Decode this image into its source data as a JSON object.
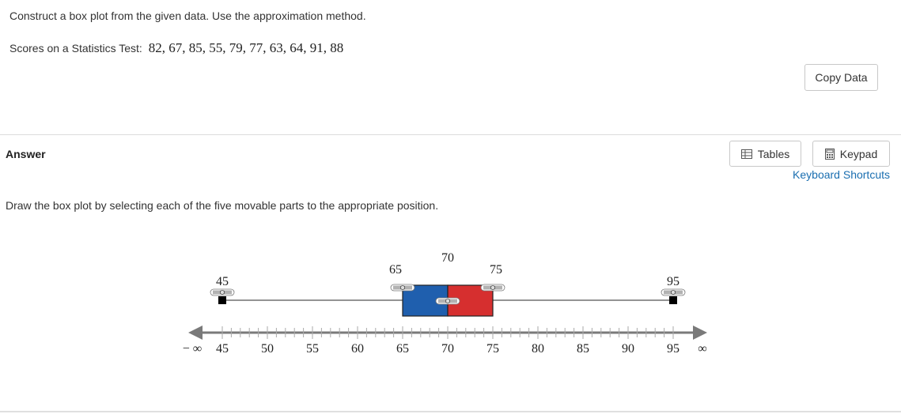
{
  "question": {
    "instruction": "Construct a box plot from the given data. Use the approximation method.",
    "data_label": "Scores on a Statistics Test:",
    "data_values": "82, 67, 85, 55, 79, 77, 63, 64, 91, 88",
    "copy_button": "Copy Data"
  },
  "answer": {
    "heading": "Answer",
    "tables_button": "Tables",
    "keypad_button": "Keypad",
    "keyboard_shortcuts": "Keyboard Shortcuts",
    "draw_instruction": "Draw the box plot by selecting each of the five movable parts to the appropriate position."
  },
  "boxplot": {
    "min": 45,
    "q1": 65,
    "median": 70,
    "q3": 75,
    "max": 95,
    "labels": {
      "min": "45",
      "q1": "65",
      "median": "70",
      "q3": "75",
      "max": "95"
    },
    "colors": {
      "lower_box": "#1f5fae",
      "upper_box": "#d62f2f",
      "axis": "#7a7a7a"
    }
  },
  "axis": {
    "left_end_label": "− ∞",
    "right_end_label": "∞",
    "ticks": [
      "45",
      "50",
      "55",
      "60",
      "65",
      "70",
      "75",
      "80",
      "85",
      "90",
      "95"
    ]
  }
}
